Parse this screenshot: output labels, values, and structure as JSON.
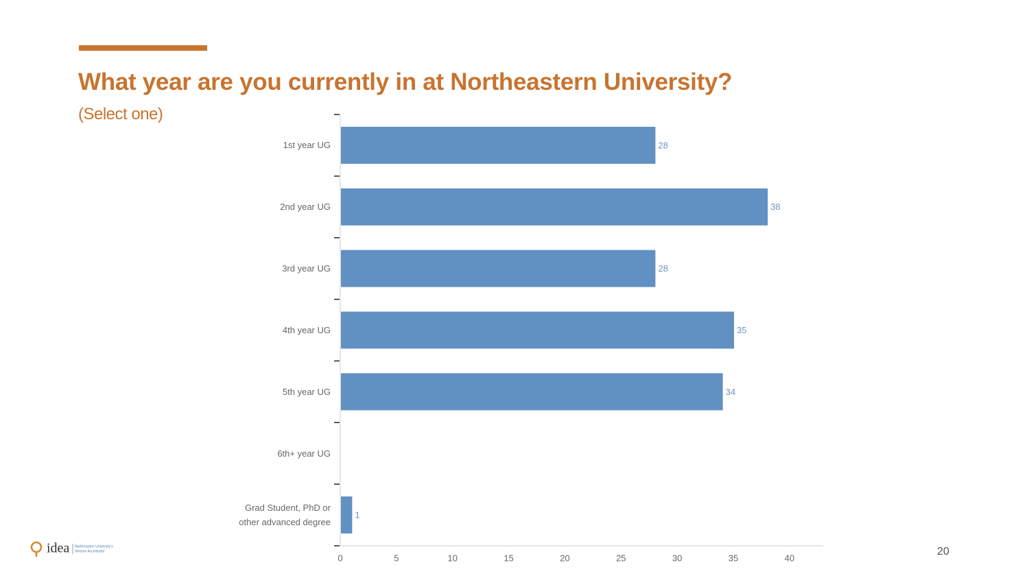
{
  "chart_data": {
    "type": "bar",
    "orientation": "horizontal",
    "title": "What year are you currently in at Northeastern University?",
    "subtitle": "(Select one)",
    "categories": [
      "1st year UG",
      "2nd year UG",
      "3rd year UG",
      "4th year UG",
      "5th year UG",
      "6th+ year UG",
      "Grad Student, PhD or other advanced degree"
    ],
    "values": [
      28,
      38,
      28,
      35,
      34,
      null,
      1
    ],
    "color": "#6190c3",
    "xlim": [
      0,
      43
    ],
    "xticks": [
      0,
      5,
      10,
      15,
      20,
      25,
      30,
      35,
      40
    ],
    "grid": false
  },
  "slide": {
    "page_number": "20",
    "logo": {
      "name": "idea",
      "tagline": [
        "Northeastern University's",
        "Venture Accelerator"
      ]
    }
  }
}
